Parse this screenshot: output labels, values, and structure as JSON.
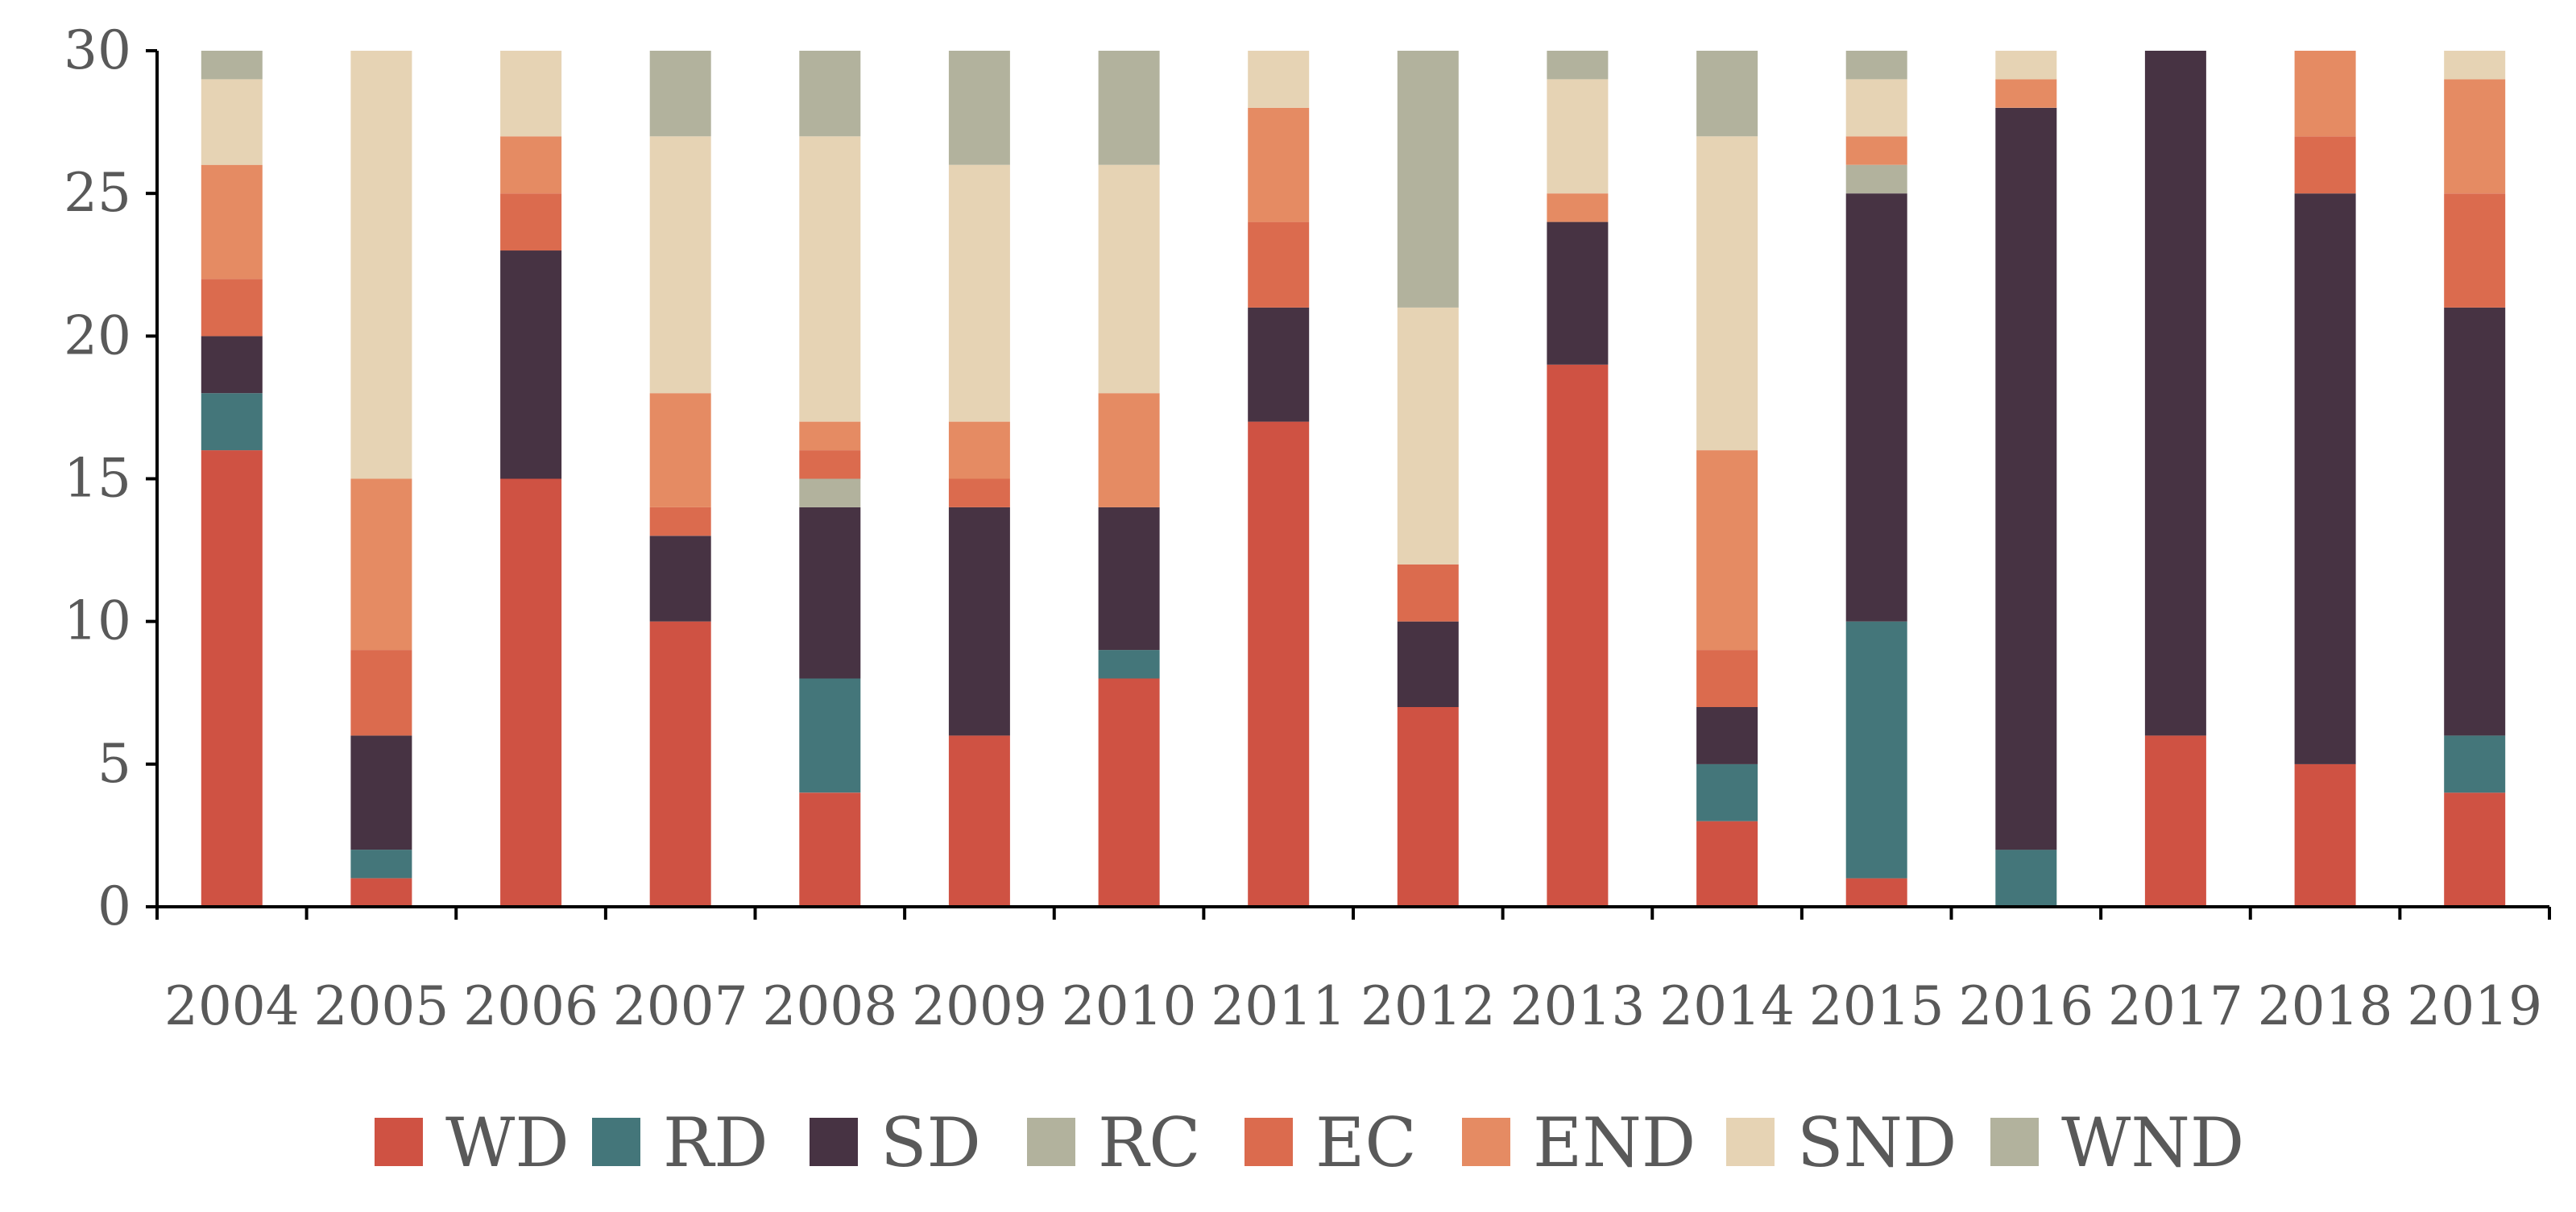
{
  "chart_data": {
    "type": "bar",
    "stacked": true,
    "title": "",
    "xlabel": "",
    "ylabel": "",
    "ylim": [
      0,
      30
    ],
    "yticks": [
      "0",
      "5",
      "10",
      "15",
      "20",
      "25",
      "30"
    ],
    "grid": false,
    "legend_position": "bottom",
    "categories": [
      "2004",
      "2005",
      "2006",
      "2007",
      "2008",
      "2009",
      "2010",
      "2011",
      "2012",
      "2013",
      "2014",
      "2015",
      "2016",
      "2017",
      "2018",
      "2019"
    ],
    "series": [
      {
        "name": "WD",
        "color": "#cf5243",
        "values": [
          16,
          1,
          15,
          10,
          4,
          6,
          8,
          17,
          7,
          19,
          3,
          1,
          0,
          6,
          5,
          4
        ]
      },
      {
        "name": "RD",
        "color": "#44767a",
        "values": [
          2,
          1,
          0,
          0,
          4,
          0,
          1,
          0,
          0,
          0,
          2,
          9,
          2,
          0,
          0,
          2
        ]
      },
      {
        "name": "SD",
        "color": "#473343",
        "values": [
          2,
          4,
          8,
          3,
          6,
          8,
          5,
          4,
          3,
          5,
          2,
          15,
          26,
          24,
          20,
          15
        ]
      },
      {
        "name": "RC",
        "color": "#b2b29d",
        "values": [
          0,
          0,
          0,
          0,
          1,
          0,
          0,
          0,
          0,
          0,
          0,
          1,
          0,
          0,
          0,
          0
        ]
      },
      {
        "name": "EC",
        "color": "#db6b4e",
        "values": [
          2,
          3,
          2,
          1,
          1,
          1,
          0,
          3,
          2,
          0,
          2,
          0,
          0,
          0,
          2,
          4
        ]
      },
      {
        "name": "END",
        "color": "#e58b63",
        "values": [
          4,
          6,
          2,
          4,
          1,
          2,
          4,
          4,
          0,
          1,
          7,
          1,
          1,
          0,
          3,
          4
        ]
      },
      {
        "name": "SND",
        "color": "#e6d3b4",
        "values": [
          3,
          15,
          3,
          9,
          10,
          9,
          8,
          2,
          9,
          4,
          11,
          2,
          1,
          0,
          0,
          1
        ]
      },
      {
        "name": "WND",
        "color": "#b2b29d",
        "values": [
          1,
          0,
          0,
          3,
          3,
          4,
          4,
          0,
          9,
          1,
          3,
          1,
          0,
          0,
          0,
          0
        ]
      }
    ]
  }
}
